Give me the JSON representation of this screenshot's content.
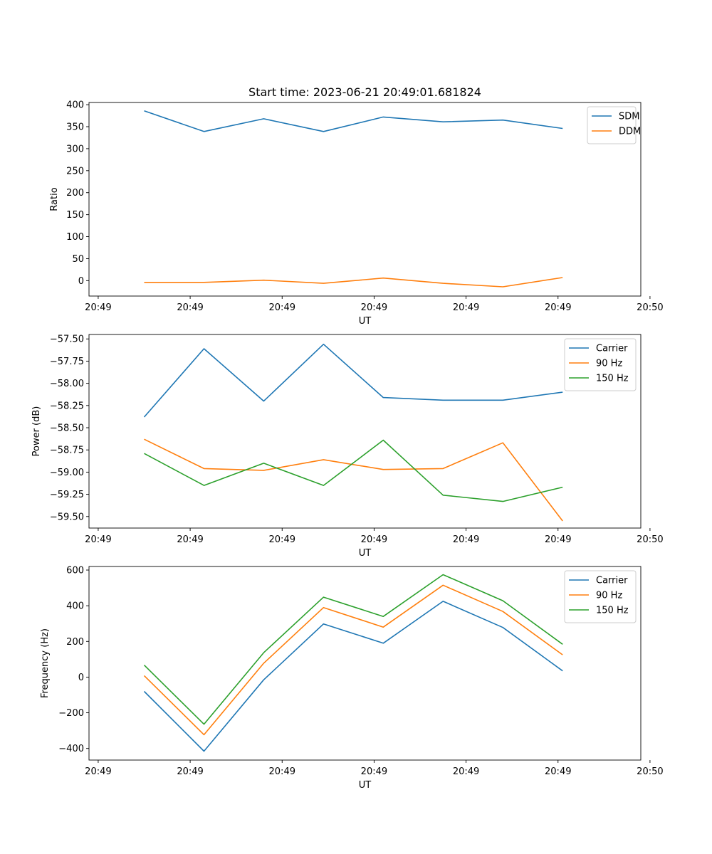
{
  "figure_title": "Start time: 2023-06-21 20:49:01.681824",
  "chart_data": [
    {
      "type": "line",
      "title": "Start time: 2023-06-21 20:49:01.681824",
      "xlabel": "UT",
      "ylabel": "Ratio",
      "x_tick_labels": [
        "20:49",
        "20:49",
        "20:49",
        "20:49",
        "20:49",
        "20:49",
        "20:50"
      ],
      "x": [
        0.5,
        1.15,
        1.8,
        2.45,
        3.1,
        3.75,
        4.4,
        5.05
      ],
      "xlim": [
        -0.1,
        5.9
      ],
      "ylim": [
        -35,
        405
      ],
      "yticks": [
        0,
        50,
        100,
        150,
        200,
        250,
        300,
        350,
        400
      ],
      "legend": "top-right",
      "series": [
        {
          "name": "SDM",
          "color": "#1f77b4",
          "values": [
            386,
            339,
            368,
            339,
            372,
            361,
            365,
            346
          ]
        },
        {
          "name": "DDM",
          "color": "#ff7f0e",
          "values": [
            -4,
            -4,
            1,
            -6,
            6,
            -6,
            -14,
            7
          ]
        }
      ]
    },
    {
      "type": "line",
      "xlabel": "UT",
      "ylabel": "Power (dB)",
      "x_tick_labels": [
        "20:49",
        "20:49",
        "20:49",
        "20:49",
        "20:49",
        "20:49",
        "20:50"
      ],
      "x": [
        0.5,
        1.15,
        1.8,
        2.45,
        3.1,
        3.75,
        4.4,
        5.05
      ],
      "xlim": [
        -0.1,
        5.9
      ],
      "ylim": [
        -59.63,
        -57.45
      ],
      "yticks": [
        -59.5,
        -59.25,
        -59.0,
        -58.75,
        -58.5,
        -58.25,
        -58.0,
        -57.75,
        -57.5
      ],
      "ytick_labels": [
        "−59.50",
        "−59.25",
        "−59.00",
        "−58.75",
        "−58.50",
        "−58.25",
        "−58.00",
        "−57.75",
        "−57.50"
      ],
      "legend": "top-right",
      "series": [
        {
          "name": "Carrier",
          "color": "#1f77b4",
          "values": [
            -58.38,
            -57.61,
            -58.2,
            -57.56,
            -58.16,
            -58.19,
            -58.19,
            -58.1
          ]
        },
        {
          "name": "90 Hz",
          "color": "#ff7f0e",
          "values": [
            -58.63,
            -58.96,
            -58.98,
            -58.86,
            -58.97,
            -58.96,
            -58.67,
            -59.55
          ]
        },
        {
          "name": "150 Hz",
          "color": "#2ca02c",
          "values": [
            -58.79,
            -59.15,
            -58.9,
            -59.15,
            -58.64,
            -59.26,
            -59.33,
            -59.17
          ]
        }
      ]
    },
    {
      "type": "line",
      "xlabel": "UT",
      "ylabel": "Frequency (Hz)",
      "x_tick_labels": [
        "20:49",
        "20:49",
        "20:49",
        "20:49",
        "20:49",
        "20:49",
        "20:50"
      ],
      "x": [
        0.5,
        1.15,
        1.8,
        2.45,
        3.1,
        3.75,
        4.4,
        5.05
      ],
      "xlim": [
        -0.1,
        5.9
      ],
      "ylim": [
        -465,
        620
      ],
      "yticks": [
        -400,
        -200,
        0,
        200,
        400,
        600
      ],
      "ytick_labels": [
        "−400",
        "−200",
        "0",
        "200",
        "400",
        "600"
      ],
      "legend": "top-right",
      "series": [
        {
          "name": "Carrier",
          "color": "#1f77b4",
          "values": [
            -80,
            -415,
            -15,
            298,
            190,
            425,
            278,
            35
          ]
        },
        {
          "name": "90 Hz",
          "color": "#ff7f0e",
          "values": [
            8,
            -323,
            78,
            390,
            280,
            515,
            368,
            125
          ]
        },
        {
          "name": "150 Hz",
          "color": "#2ca02c",
          "values": [
            67,
            -264,
            137,
            448,
            340,
            574,
            428,
            184
          ]
        }
      ]
    }
  ]
}
